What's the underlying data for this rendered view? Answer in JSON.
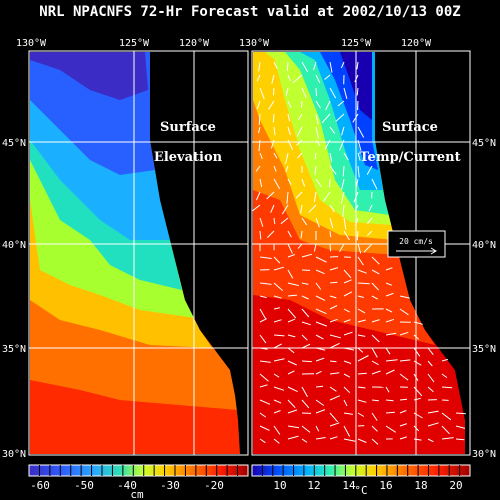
{
  "title": "NRL NPACNFS 72-Hr Forecast valid at 2002/10/13 00Z",
  "top_lon_labels": [
    "130°W",
    "125°W",
    "120°W"
  ],
  "lat_labels": [
    "45°N",
    "40°N",
    "35°N",
    "30°N"
  ],
  "left_panel": {
    "label_line1": "Surface",
    "label_line2": "Elevation",
    "colorbar_ticks": [
      "-60",
      "-50",
      "-40",
      "-30",
      "-20"
    ],
    "unit": "cm"
  },
  "right_panel": {
    "label_line1": "Surface",
    "label_line2": "Temp/Current",
    "vector_label": "20 cm/s",
    "colorbar_ticks": [
      "10",
      "12",
      "14",
      "16",
      "18",
      "20"
    ],
    "unit": "°C"
  },
  "colors": {
    "elev": [
      "#7a0000",
      "#d00000",
      "#ff2000",
      "#ff6a00",
      "#ffa000",
      "#ffd000",
      "#e8ff20",
      "#90ff40",
      "#20e0a0",
      "#00c0ff",
      "#0080ff",
      "#1030ff",
      "#0000c0"
    ],
    "temp": [
      "#0000b0",
      "#0040ff",
      "#00a0ff",
      "#00e0e0",
      "#60ff80",
      "#d0ff20",
      "#ffe000",
      "#ffa000",
      "#ff6000",
      "#ff2000",
      "#d80000",
      "#900000"
    ]
  }
}
